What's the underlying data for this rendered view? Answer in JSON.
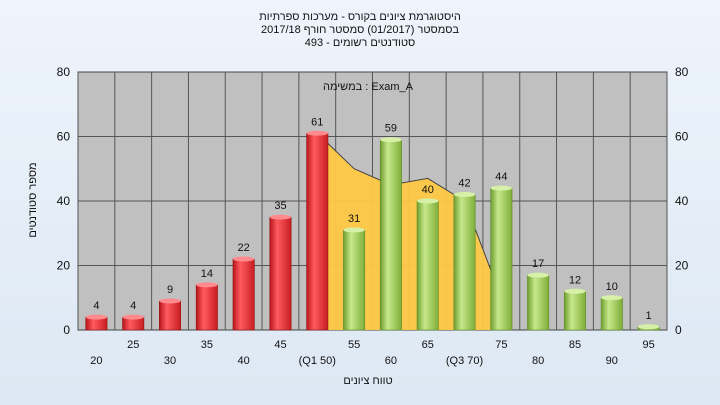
{
  "chart_data": {
    "type": "bar",
    "title_lines": [
      "היסטוגרמת ציונים בקורס - מערכות ספרתיות",
      "בסמסטר  (01/2017)  סמסטר חורף 2017/18",
      "סטודנטים רשומים - 493"
    ],
    "inner_label": "במשימה : Exam_A",
    "xlabel": "טווח ציונים",
    "ylabel": "מספר סטודנטים",
    "ylim": [
      0,
      80
    ],
    "yticks": [
      0,
      20,
      40,
      60,
      80
    ],
    "categories": [
      "20",
      "25",
      "30",
      "35",
      "40",
      "45",
      "(Q1 50)",
      "55",
      "60",
      "65",
      "(Q3 70)",
      "75",
      "80",
      "85",
      "90",
      "95"
    ],
    "values": [
      4,
      4,
      9,
      14,
      22,
      35,
      61,
      31,
      59,
      40,
      42,
      44,
      17,
      12,
      10,
      1
    ],
    "bar_colors": [
      "red",
      "red",
      "red",
      "red",
      "red",
      "red",
      "red",
      "green",
      "green",
      "green",
      "green",
      "green",
      "green",
      "green",
      "green",
      "green"
    ],
    "colors": {
      "red": "#e8252b",
      "green": "#9ccc55",
      "band": "#ffc844",
      "plot_bg": "#c0c0c0",
      "grid": "#555555"
    },
    "band_values": [
      61,
      50,
      45,
      47,
      40,
      10
    ],
    "grid": true
  }
}
